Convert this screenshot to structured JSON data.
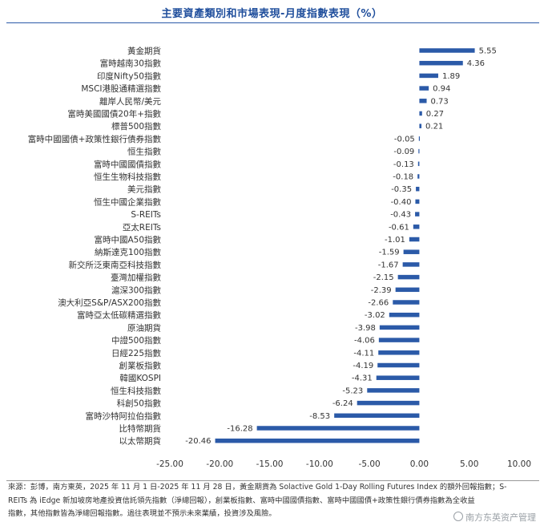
{
  "title": "主要資產類別和市場表現-月度指數表現（%）",
  "chart_data": {
    "type": "bar",
    "orientation": "horizontal",
    "categories": [
      "黃金期貨",
      "富時越南30指數",
      "印度Nifty50指數",
      "MSCI港股通精選指數",
      "離岸人民幣/美元",
      "富時美國國債20年+指數",
      "標普500指數",
      "富時中國國債+政策性銀行債券指數",
      "恒生指數",
      "富時中國國債指數",
      "恒生生物科技指數",
      "美元指數",
      "恒生中國企業指數",
      "S-REITs",
      "亞太REITs",
      "富時中國A50指數",
      "納斯達克100指數",
      "新交所泛東南亞科技指數",
      "臺灣加權指數",
      "滬深300指數",
      "澳大利亞S&P/ASX200指數",
      "富時亞太低碳精選指數",
      "原油期貨",
      "中證500指數",
      "日經225指數",
      "創業板指數",
      "韓國KOSPI",
      "恒生科技指數",
      "科創50指數",
      "富時沙特阿拉伯指數",
      "比特幣期貨",
      "以太幣期貨"
    ],
    "values": [
      5.55,
      4.36,
      1.89,
      0.94,
      0.73,
      0.27,
      0.21,
      -0.05,
      -0.09,
      -0.13,
      -0.18,
      -0.35,
      -0.4,
      -0.43,
      -0.61,
      -1.01,
      -1.59,
      -1.67,
      -2.15,
      -2.39,
      -2.66,
      -3.02,
      -3.98,
      -4.06,
      -4.11,
      -4.19,
      -4.31,
      -5.23,
      -6.24,
      -8.53,
      -16.28,
      -20.46
    ],
    "value_labels": [
      "5.55",
      "4.36",
      "1.89",
      "0.94",
      "0.73",
      "0.27",
      "0.21",
      "-0.05",
      "-0.09",
      "-0.13",
      "-0.18",
      "-0.35",
      "-0.40",
      "-0.43",
      "-0.61",
      "-1.01",
      "-1.59",
      "-1.67",
      "-2.15",
      "-2.39",
      "-2.66",
      "-3.02",
      "-3.98",
      "-4.06",
      "-4.11",
      "-4.19",
      "-4.31",
      "-5.23",
      "-6.24",
      "-8.53",
      "-16.28",
      "-20.46"
    ],
    "xlim": [
      -25,
      10
    ],
    "xticks": [
      -25,
      -20,
      -15,
      -10,
      -5,
      0,
      5,
      10
    ],
    "xtick_labels": [
      "-25.00",
      "-20.00",
      "-15.00",
      "-10.00",
      "-5.00",
      "0.00",
      "5.00",
      "10.00"
    ],
    "bar_color": "#2b5aa8",
    "grid": false,
    "legend": "none"
  },
  "footer": {
    "line1": "來源：彭博，南方東英，2025 年 11 月 1 日-2025 年 11 月 28 日，黃金期貨為 Solactive Gold 1-Day Rolling Futures Index 的額外回報指數；S-",
    "line2": "REITs 為 iEdge 新加坡房地產投資信託領先指數（淨總回報），創業板指數、富時中國國債指數、富時中國國債+政策性銀行債券指數為全收益",
    "line3": "指數，其他指數皆為淨總回報指數。過往表現並不預示未來業績，投資涉及風險。"
  },
  "watermark": "南方东英资产管理"
}
